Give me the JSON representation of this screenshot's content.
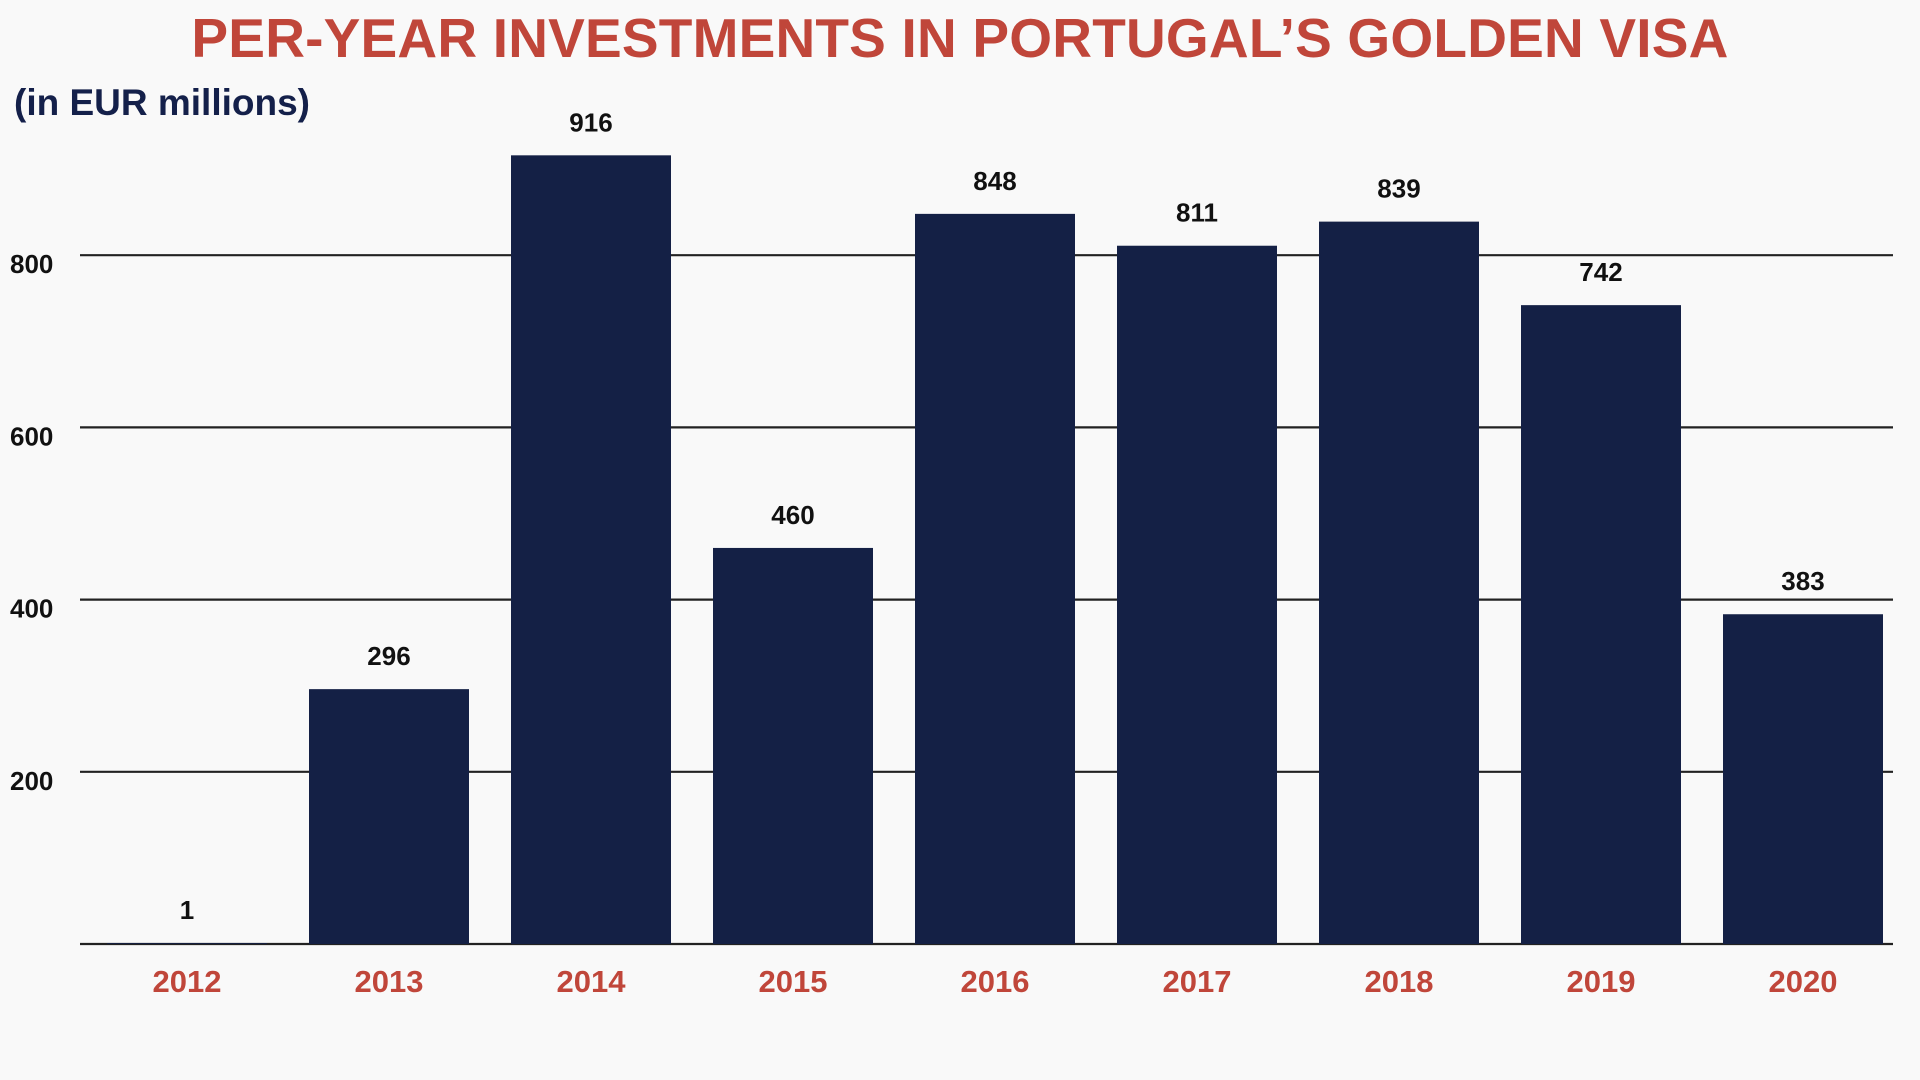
{
  "chart_data": {
    "type": "bar",
    "title": "PER-YEAR INVESTMENTS IN PORTUGAL’S GOLDEN VISA",
    "subtitle": "(in EUR millions)",
    "xlabel": "",
    "ylabel": "",
    "categories": [
      "2012",
      "2013",
      "2014",
      "2015",
      "2016",
      "2017",
      "2018",
      "2019",
      "2020"
    ],
    "values": [
      1,
      296,
      916,
      460,
      848,
      811,
      839,
      742,
      383
    ],
    "data_labels": [
      "1",
      "296",
      "916",
      "460",
      "848",
      "811",
      "839",
      "742",
      "383"
    ],
    "yticks": [
      200,
      400,
      600,
      800
    ],
    "ytick_labels": [
      "200",
      "400",
      "600",
      "800"
    ],
    "ylim": [
      0,
      1000
    ],
    "grid": true,
    "legend": "none",
    "colors": {
      "bar": "#142045",
      "title": "#c0463a",
      "subtitle": "#14204a",
      "x_tick": "#c0463a",
      "gridline": "#222222",
      "background": "#f9f9f9"
    }
  }
}
